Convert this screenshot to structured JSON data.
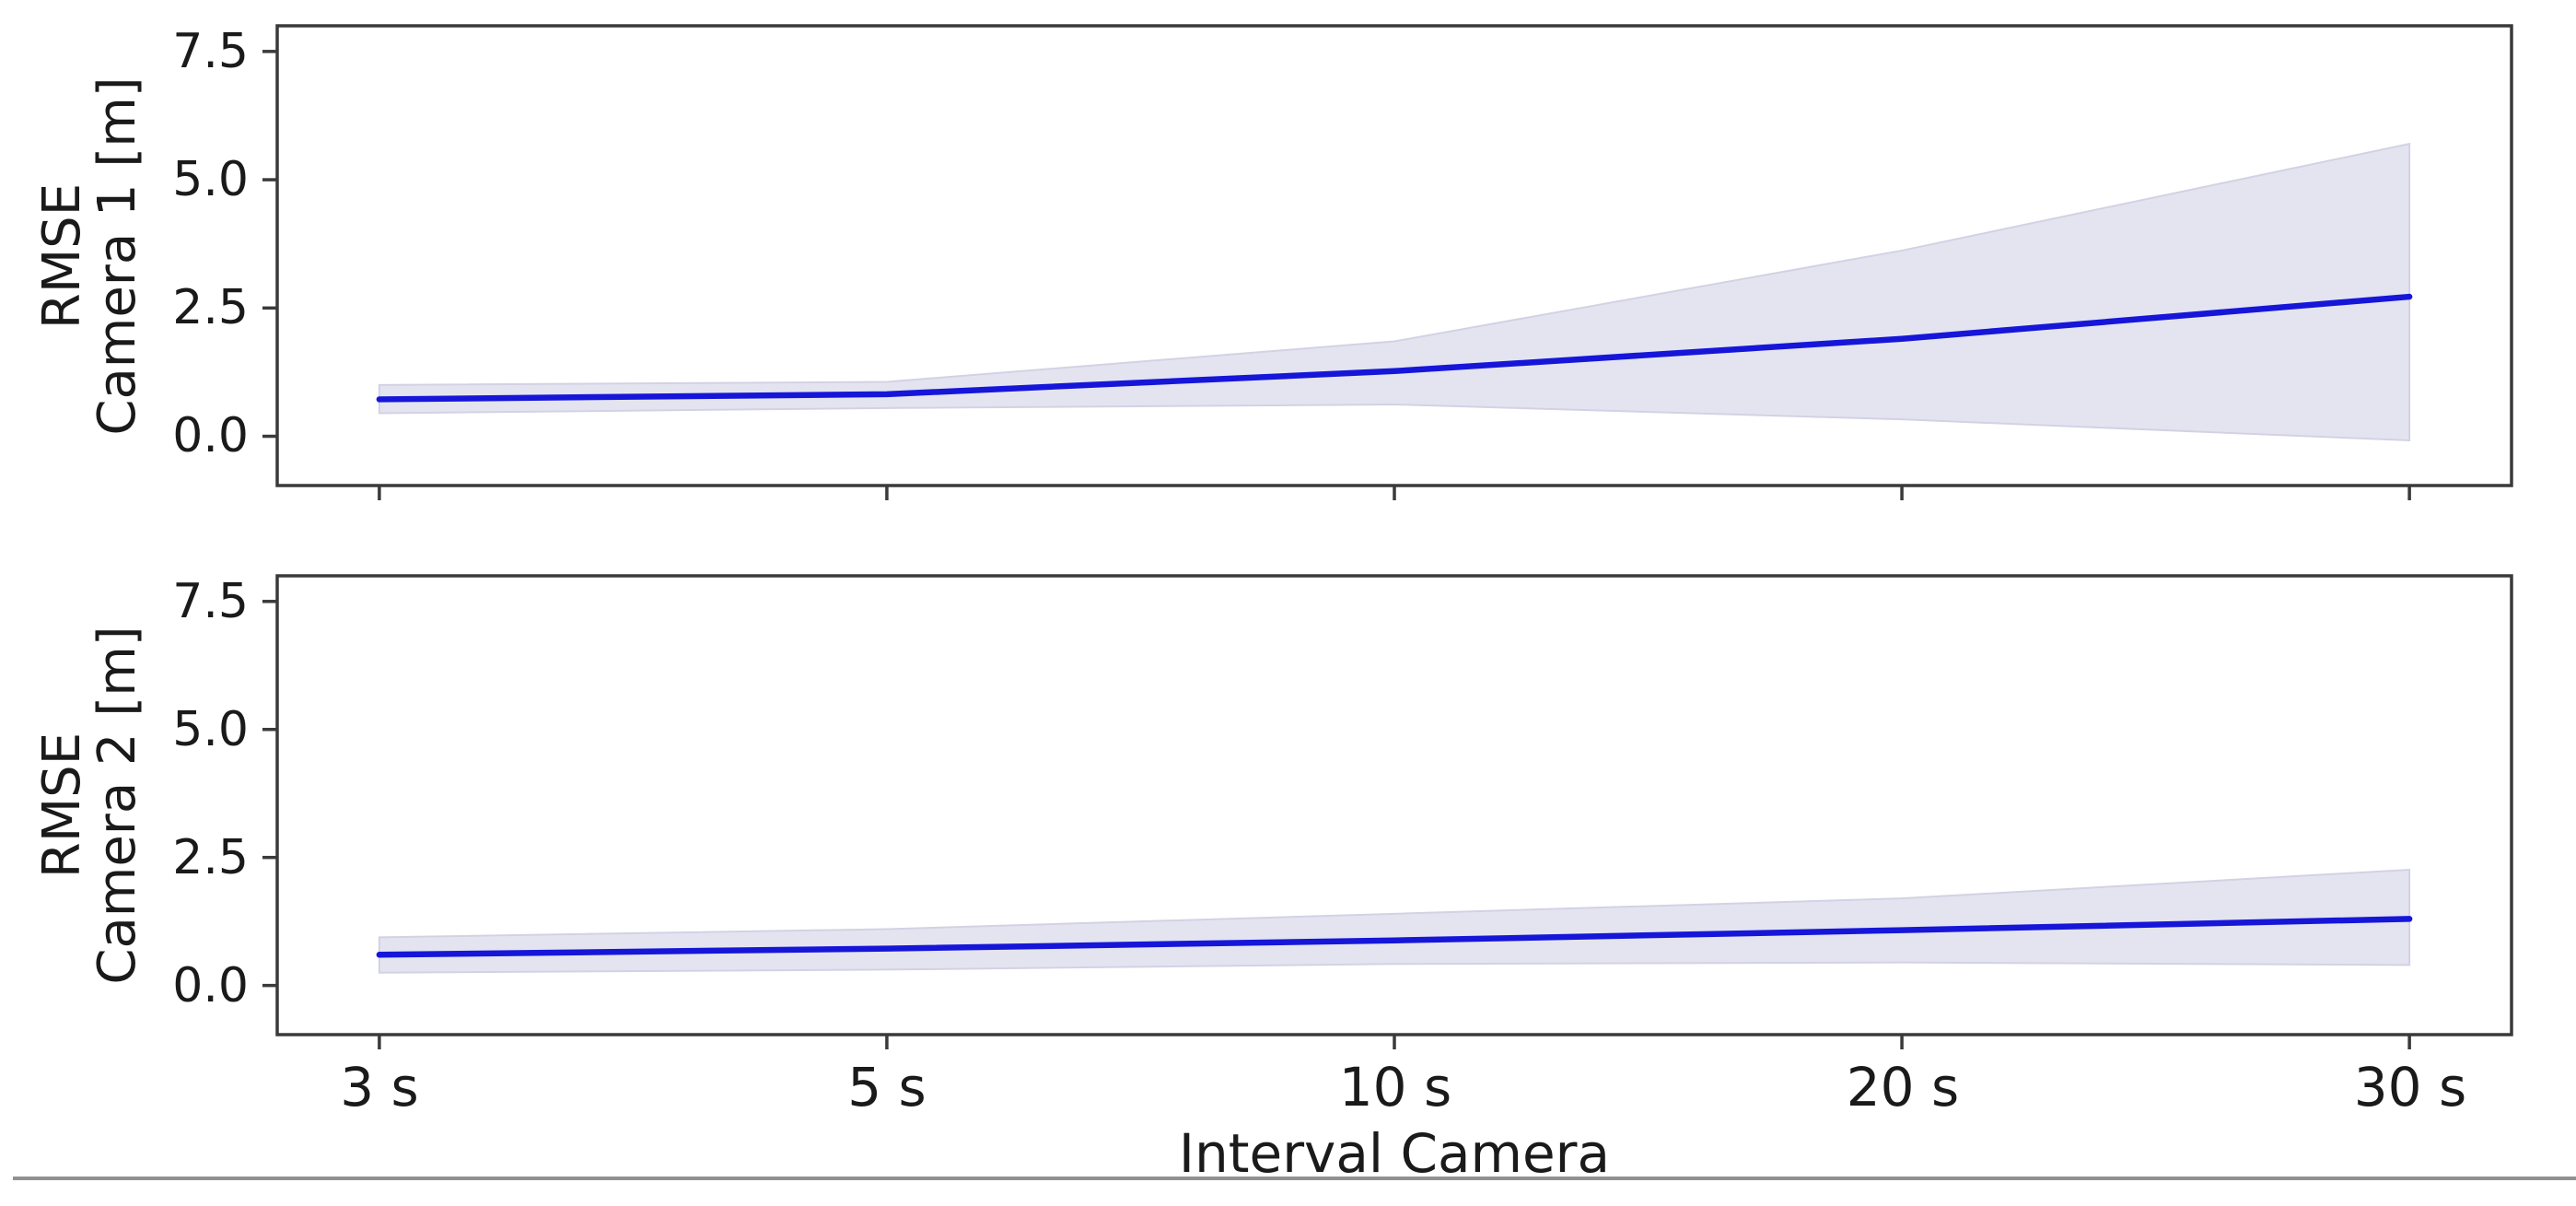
{
  "figure": {
    "background": "#ffffff",
    "divider_color": "#919191"
  },
  "colors": {
    "line": "#1616d9",
    "band_fill": "#e4e4f1",
    "band_edge": "#d2d2e4",
    "spine": "#3a3a3a",
    "text": "#1a1a1a"
  },
  "chart_data": [
    {
      "type": "line",
      "name": "rmse-camera-1",
      "title": "",
      "xlabel": "Interval Camera",
      "ylabel": "RMSE Camera 1 [m]",
      "ylabel_lines": [
        "RMSE",
        "Camera 1 [m]"
      ],
      "categories": [
        "3 s",
        "5 s",
        "10 s",
        "20 s",
        "30 s"
      ],
      "series": [
        {
          "name": "mean",
          "values": [
            0.72,
            0.82,
            1.27,
            1.9,
            2.72
          ]
        },
        {
          "name": "band_low",
          "values": [
            0.45,
            0.55,
            0.62,
            0.33,
            -0.08
          ]
        },
        {
          "name": "band_high",
          "values": [
            1.0,
            1.06,
            1.85,
            3.62,
            5.7
          ]
        }
      ],
      "yticks": [
        7.5,
        5.0,
        2.5,
        0.0
      ],
      "ytick_labels": [
        "7.5",
        "5.0",
        "2.5",
        "0.0"
      ],
      "ylim": [
        -0.96,
        8.0
      ],
      "grid": false,
      "legend": "none"
    },
    {
      "type": "line",
      "name": "rmse-camera-2",
      "title": "",
      "xlabel": "Interval Camera",
      "ylabel": "RMSE Camera 2 [m]",
      "ylabel_lines": [
        "RMSE",
        "Camera 2 [m]"
      ],
      "categories": [
        "3 s",
        "5 s",
        "10 s",
        "20 s",
        "30 s"
      ],
      "series": [
        {
          "name": "mean",
          "values": [
            0.6,
            0.72,
            0.88,
            1.08,
            1.3
          ]
        },
        {
          "name": "band_low",
          "values": [
            0.25,
            0.31,
            0.42,
            0.45,
            0.4
          ]
        },
        {
          "name": "band_high",
          "values": [
            0.94,
            1.1,
            1.4,
            1.7,
            2.26
          ]
        }
      ],
      "yticks": [
        7.5,
        5.0,
        2.5,
        0.0
      ],
      "ytick_labels": [
        "7.5",
        "5.0",
        "2.5",
        "0.0"
      ],
      "ylim": [
        -0.96,
        8.0
      ],
      "grid": false,
      "legend": "none"
    }
  ]
}
